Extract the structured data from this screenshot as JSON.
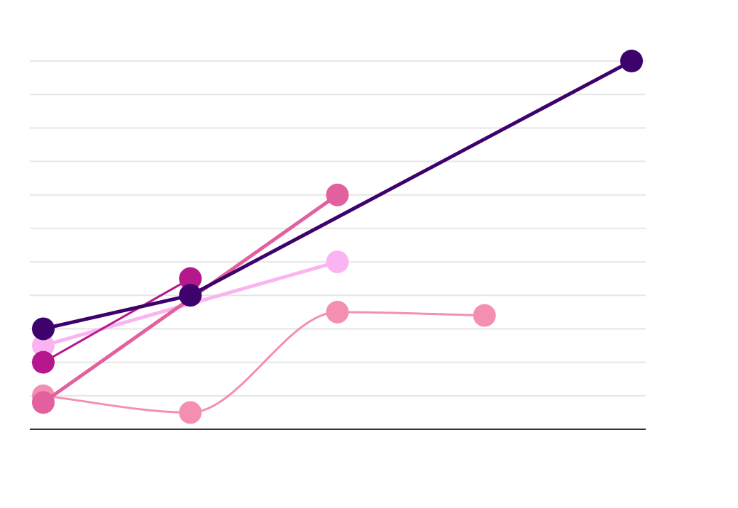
{
  "chart_data": {
    "type": "line",
    "title": "",
    "xlabel": "",
    "ylabel": "",
    "x": [
      0,
      1,
      2,
      3,
      4
    ],
    "xlim": [
      -0.1,
      4.1
    ],
    "ylim": [
      0,
      11
    ],
    "grid": true,
    "gridlines": [
      1,
      2,
      3,
      4,
      5,
      6,
      7,
      8,
      9,
      10,
      11
    ],
    "legend": "none",
    "series": [
      {
        "color": "#f48fb1",
        "curve": "smooth",
        "points": [
          [
            0,
            1.0
          ],
          [
            1,
            0.5
          ],
          [
            2,
            3.5
          ],
          [
            3,
            3.4
          ]
        ]
      },
      {
        "color": "#fbb4f2",
        "curve": "linear",
        "points": [
          [
            0,
            2.5
          ],
          [
            2,
            5.0
          ]
        ]
      },
      {
        "color": "#b5178c",
        "curve": "linear",
        "points": [
          [
            0,
            2.0
          ],
          [
            1,
            4.5
          ]
        ]
      },
      {
        "color": "#e3609e",
        "curve": "linear",
        "points": [
          [
            0,
            0.8
          ],
          [
            2,
            7.0
          ]
        ]
      },
      {
        "color": "#3d026b",
        "curve": "linear",
        "points": [
          [
            0,
            3.0
          ],
          [
            1,
            4.0
          ],
          [
            4,
            11.0
          ]
        ]
      }
    ]
  }
}
